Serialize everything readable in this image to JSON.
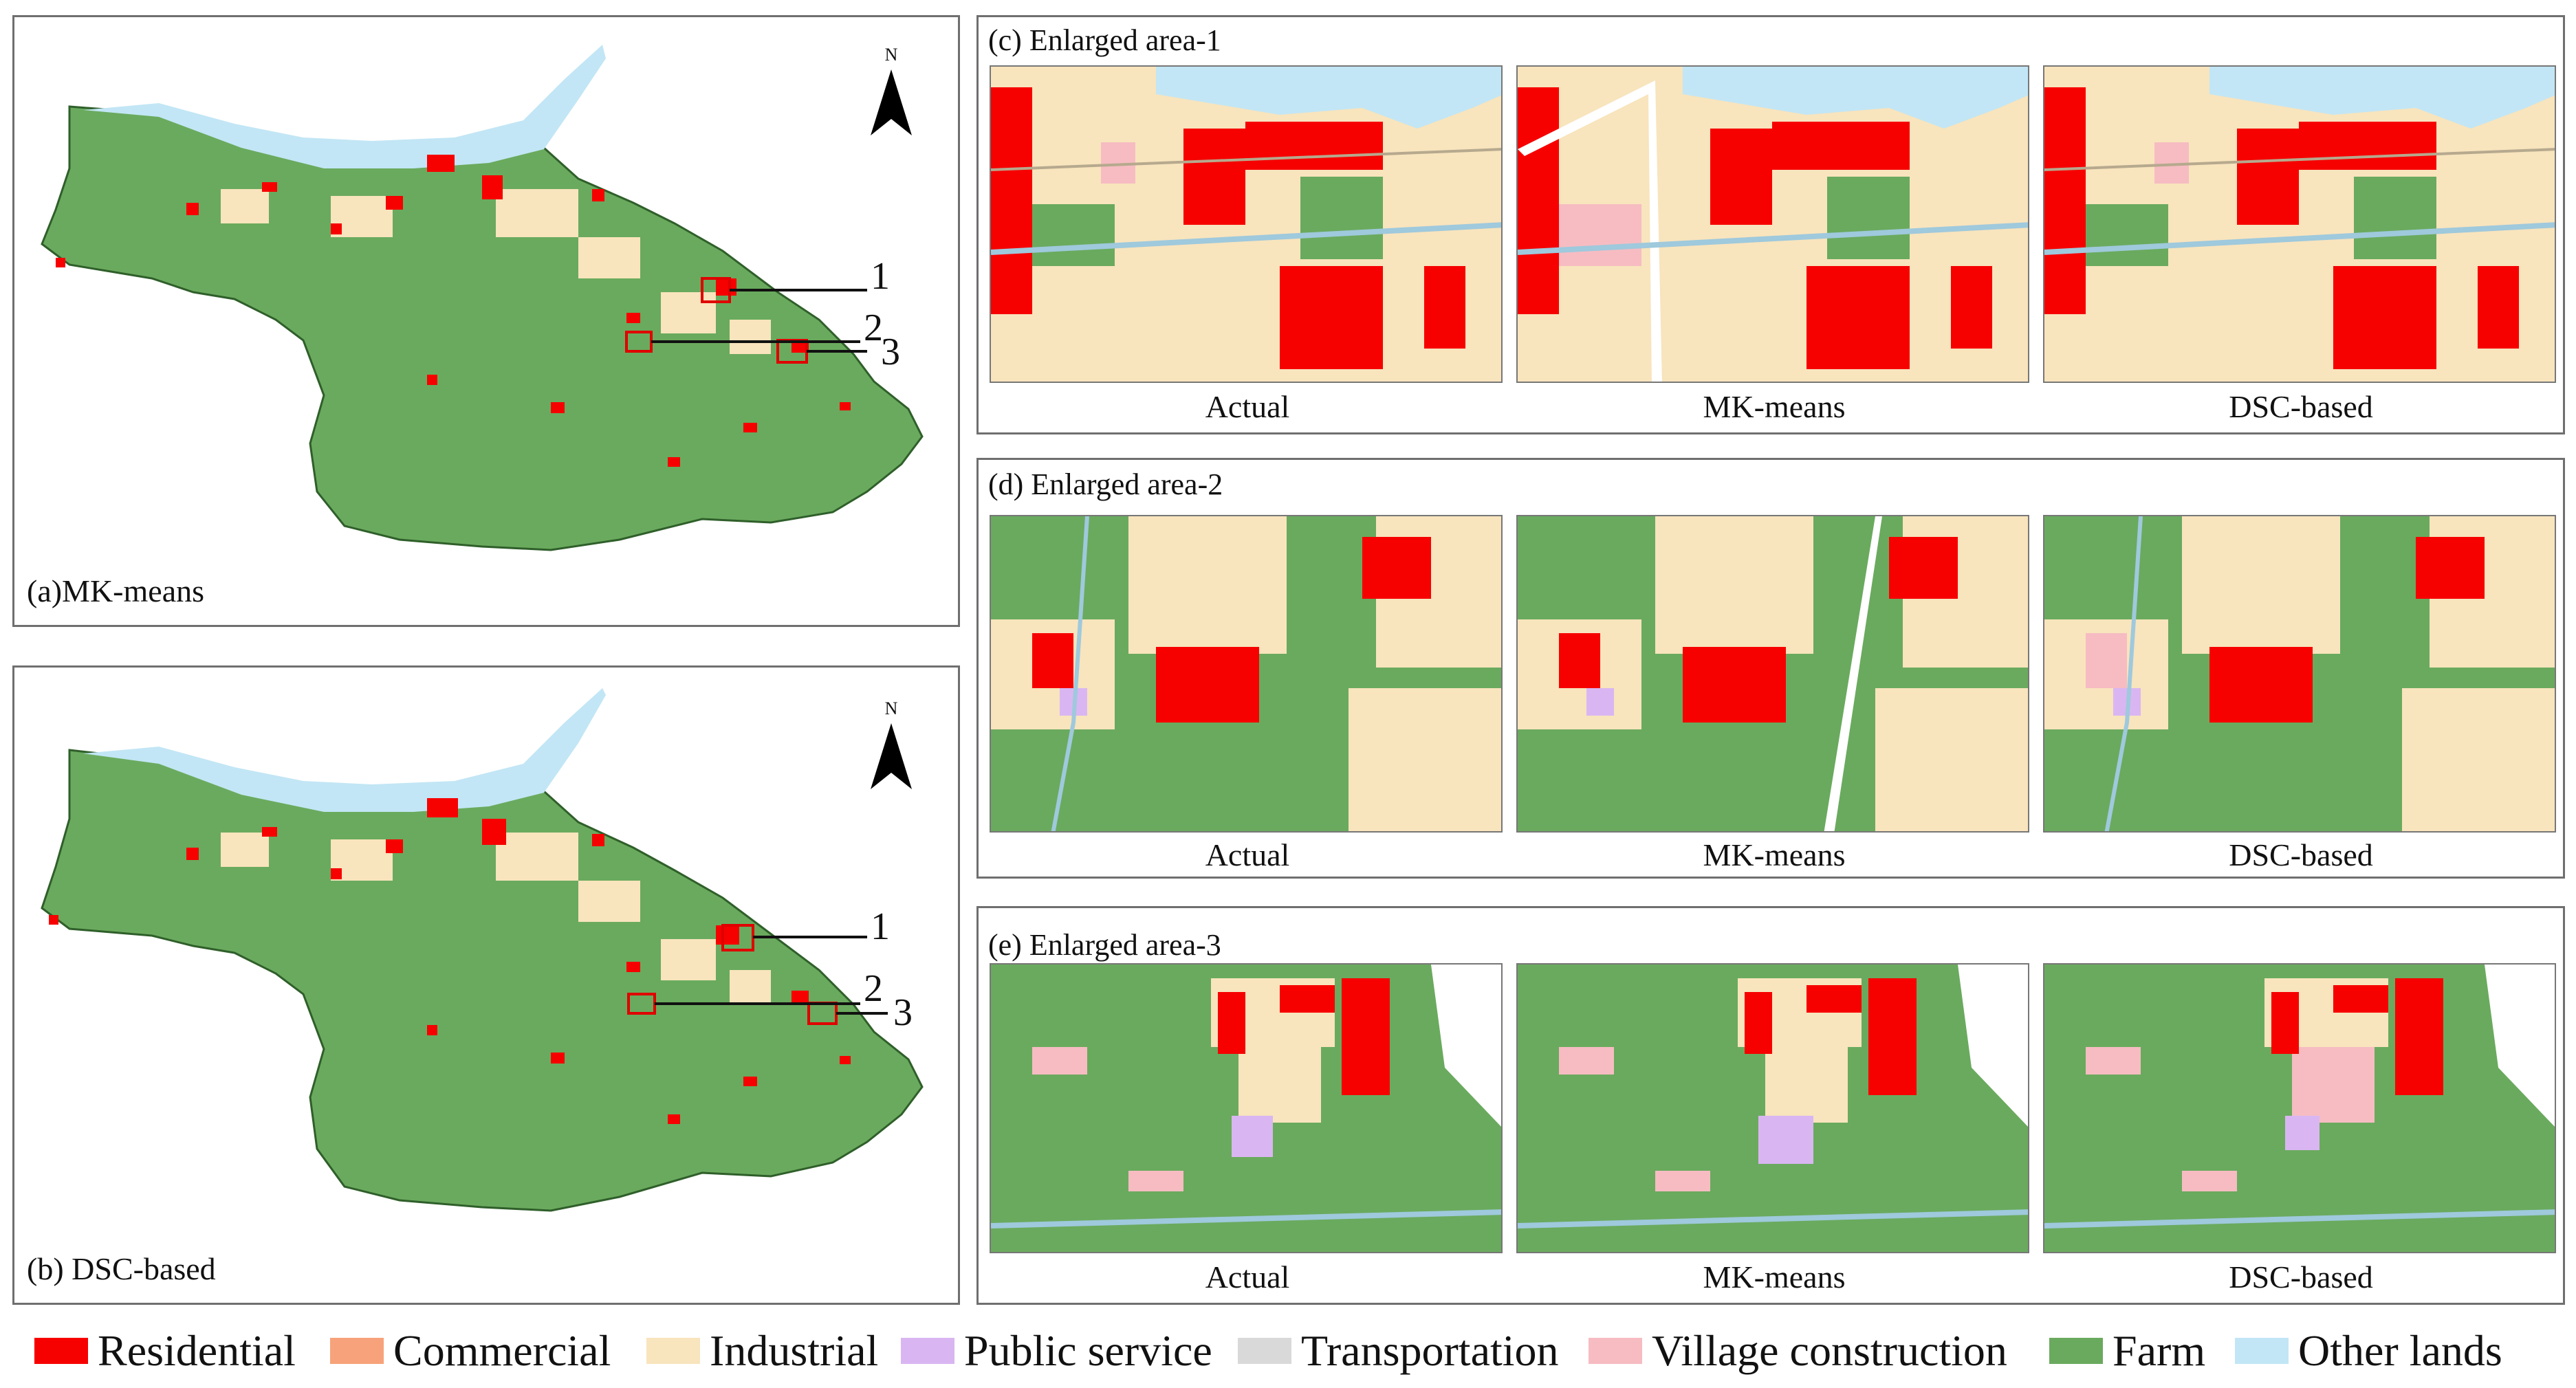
{
  "colors": {
    "residential": "#f60000",
    "commercial": "#f7a27a",
    "industrial": "#f8e4bd",
    "public_service": "#d9b6f2",
    "transportation": "#d9d9d9",
    "village_construction": "#f6bcc2",
    "farm": "#6aaa5e",
    "other_lands": "#c2e6f5",
    "boundary_box": "#e00000"
  },
  "panel_a": {
    "caption": "(a)MK-means",
    "north": "N",
    "labels": [
      "1",
      "2",
      "3"
    ]
  },
  "panel_b": {
    "caption": "(b) DSC-based",
    "north": "N",
    "labels": [
      "1",
      "2",
      "3"
    ]
  },
  "panel_c": {
    "title": "(c) Enlarged area-1",
    "captions": [
      "Actual",
      "MK-means",
      "DSC-based"
    ]
  },
  "panel_d": {
    "title": "(d) Enlarged area-2",
    "captions": [
      "Actual",
      "MK-means",
      "DSC-based"
    ]
  },
  "panel_e": {
    "title": "(e) Enlarged area-3",
    "captions": [
      "Actual",
      "MK-means",
      "DSC-based"
    ]
  },
  "legend": [
    {
      "label": "Residential",
      "color_key": "residential"
    },
    {
      "label": "Commercial",
      "color_key": "commercial"
    },
    {
      "label": "Industrial",
      "color_key": "industrial"
    },
    {
      "label": "Public service",
      "color_key": "public_service"
    },
    {
      "label": "Transportation",
      "color_key": "transportation"
    },
    {
      "label": "Village construction",
      "color_key": "village_construction"
    },
    {
      "label": "Farm",
      "color_key": "farm"
    },
    {
      "label": "Other lands",
      "color_key": "other_lands"
    }
  ]
}
